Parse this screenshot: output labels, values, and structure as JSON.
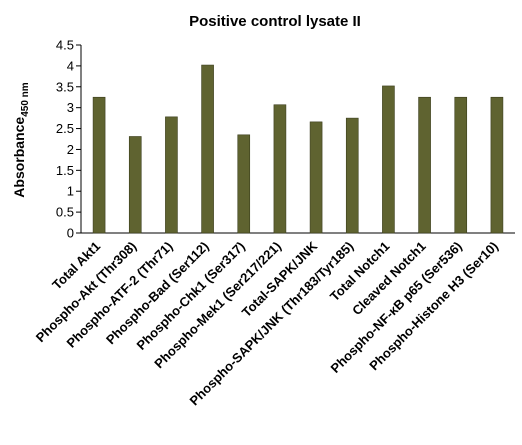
{
  "chart_data": {
    "type": "bar",
    "title": "Positive control lysate II",
    "ylabel": "Absorbance",
    "ylabel_subscript": "450 nm",
    "xlabel": "",
    "ylim": [
      0,
      4.5
    ],
    "yticks": [
      "0",
      "0.5",
      "1",
      "1.5",
      "2",
      "2.5",
      "3",
      "3.5",
      "4",
      "4.5"
    ],
    "categories": [
      "Total Akt1",
      "Phospho-Akt (Thr308)",
      "Phospho-ATF-2 (Thr71)",
      "Phospho-Bad (Ser112)",
      "Phospho-Chk1 (Ser317)",
      "Phospho-Mek1 (Ser217/221)",
      "Total-SAPK/JNK",
      "Phospho-SAPK/JNK (Thr183/Tyr185)",
      "Total Notch1",
      "Cleaved Notch1",
      "Phospho-NF-κB p65 (Ser536)",
      "Phospho-Histone H3 (Ser10)"
    ],
    "values": [
      3.25,
      2.31,
      2.78,
      4.02,
      2.35,
      3.07,
      2.66,
      2.75,
      3.52,
      3.25,
      3.25,
      3.25
    ],
    "bar_color": "#5f6330",
    "bar_edge_color": "#3a3d1c",
    "grid": false,
    "legend": "none"
  }
}
